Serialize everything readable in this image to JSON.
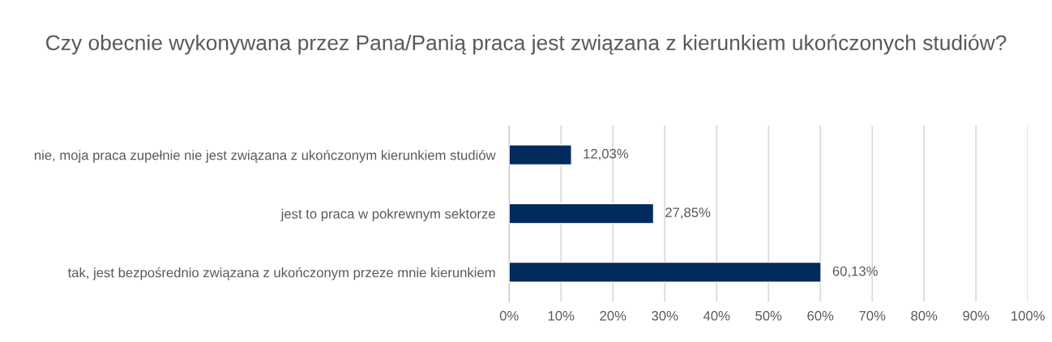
{
  "chart_data": {
    "type": "bar",
    "orientation": "horizontal",
    "title": "Czy obecnie wykonywana przez Pana/Panią praca jest związana z kierunkiem ukończonych studiów?",
    "categories": [
      "nie, moja praca zupełnie nie jest związana z ukończonym kierunkiem studiów",
      "jest to praca w pokrewnym sektorze",
      "tak, jest bezpośrednio związana z ukończonym przeze mnie kierunkiem"
    ],
    "values": [
      12.03,
      27.85,
      60.13
    ],
    "value_labels": [
      "12,03%",
      "27,85%",
      "60,13%"
    ],
    "color": "#002b5c",
    "xlim": [
      0,
      100
    ],
    "xticks": [
      {
        "value": 0,
        "label": "0%"
      },
      {
        "value": 10,
        "label": "10%"
      },
      {
        "value": 20,
        "label": "20%"
      },
      {
        "value": 30,
        "label": "30%"
      },
      {
        "value": 40,
        "label": "40%"
      },
      {
        "value": 50,
        "label": "50%"
      },
      {
        "value": 60,
        "label": "60%"
      },
      {
        "value": 70,
        "label": "70%"
      },
      {
        "value": 80,
        "label": "80%"
      },
      {
        "value": 90,
        "label": "90%"
      },
      {
        "value": 100,
        "label": "100%"
      }
    ],
    "grid": "x"
  }
}
